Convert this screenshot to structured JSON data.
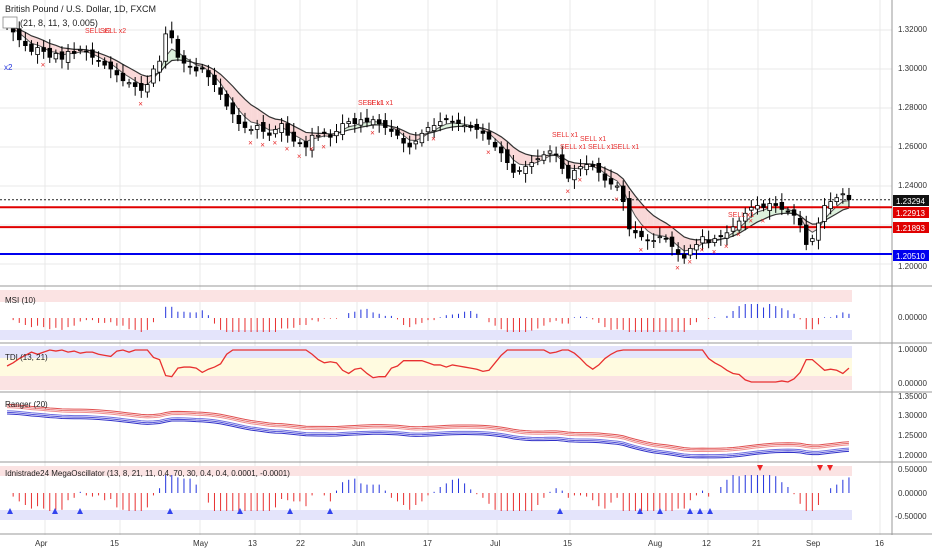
{
  "colors": {
    "bull": "#ffffff",
    "bear": "#000000",
    "support_red": "#e00000",
    "support_blue": "#0000ee",
    "signal": "#e83030",
    "accent_blue": "#2233dd",
    "grid": "#e8e8e8",
    "axis_text": "#333333"
  },
  "header": {
    "title": "British Pound / U.S. Dollar, 1D, FXCM",
    "indicator": "(21, 8, 11, 3, 0.005)"
  },
  "price_axis": {
    "ticks": [
      "1.32000",
      "1.30000",
      "1.28000",
      "1.26000",
      "1.24000",
      "1.20000"
    ],
    "current_price": "1.23294",
    "level_labels": [
      "1.22913",
      "1.21893",
      "1.20510"
    ]
  },
  "time_axis": {
    "labels": [
      "Apr",
      "15",
      "May",
      "13",
      "22",
      "Jun",
      "17",
      "Jul",
      "15",
      "Aug",
      "12",
      "21",
      "Sep",
      "16"
    ]
  },
  "signals": {
    "sell_texts": [
      "SELL x1",
      "SELL x1",
      "SELL x1",
      "SELL x1",
      "SELL x1",
      "SELL x1",
      "SELL x1",
      "SELL x1"
    ],
    "sell_texts_top": [
      "SELL x2",
      "SELL x2",
      "SELL x1"
    ],
    "left_marker": "x2",
    "label_lower_1": "SELL x1 SELL x1"
  },
  "panels": {
    "msi": {
      "title": "MSI (10)",
      "tick": "0.00000"
    },
    "tdi": {
      "title": "TDI (13, 21)",
      "ticks": [
        "1.00000",
        "0.00000"
      ]
    },
    "ranger": {
      "title": "Ranger (20)",
      "ticks": [
        "1.35000",
        "1.30000",
        "1.25000",
        "1.20000"
      ]
    },
    "mega": {
      "title": "Idnistrade24 MegaOscillator (13, 8, 21, 11, 0.4, 70, 30, 0.4, 0.4, 0.0001, -0.0001)",
      "ticks": [
        "0.50000",
        "0.00000",
        "-0.50000"
      ]
    }
  },
  "chart_data": {
    "type": "candlestick",
    "title": "British Pound / U.S. Dollar, 1D, FXCM",
    "ylim": [
      1.19,
      1.33
    ],
    "support_levels": [
      {
        "value": 1.22913,
        "color": "#e00000"
      },
      {
        "value": 1.21893,
        "color": "#e00000"
      },
      {
        "value": 1.2051,
        "color": "#0000ee"
      }
    ],
    "current_price": 1.23294,
    "close_path": [
      1.322,
      1.319,
      1.315,
      1.312,
      1.309,
      1.311,
      1.309,
      1.306,
      1.308,
      1.305,
      1.309,
      1.308,
      1.31,
      1.309,
      1.306,
      1.304,
      1.302,
      1.3,
      1.297,
      1.294,
      1.293,
      1.291,
      1.289,
      1.292,
      1.3,
      1.304,
      1.318,
      1.316,
      1.306,
      1.303,
      1.301,
      1.299,
      1.3,
      1.296,
      1.292,
      1.287,
      1.281,
      1.277,
      1.272,
      1.27,
      1.269,
      1.271,
      1.268,
      1.266,
      1.269,
      1.272,
      1.266,
      1.263,
      1.262,
      1.26,
      1.266,
      1.266,
      1.267,
      1.265,
      1.268,
      1.272,
      1.273,
      1.272,
      1.274,
      1.273,
      1.274,
      1.272,
      1.27,
      1.268,
      1.266,
      1.262,
      1.26,
      1.263,
      1.267,
      1.27,
      1.271,
      1.273,
      1.274,
      1.273,
      1.272,
      1.271,
      1.27,
      1.269,
      1.267,
      1.264,
      1.26,
      1.257,
      1.252,
      1.247,
      1.248,
      1.25,
      1.252,
      1.254,
      1.256,
      1.258,
      1.256,
      1.249,
      1.244,
      1.248,
      1.25,
      1.251,
      1.25,
      1.247,
      1.243,
      1.241,
      1.24,
      1.232,
      1.218,
      1.216,
      1.214,
      1.212,
      1.212,
      1.214,
      1.213,
      1.209,
      1.205,
      1.203,
      1.208,
      1.21,
      1.214,
      1.211,
      1.213,
      1.214,
      1.216,
      1.219,
      1.222,
      1.226,
      1.229,
      1.23,
      1.229,
      1.231,
      1.23,
      1.228,
      1.227,
      1.225,
      1.22,
      1.21,
      1.213,
      1.221,
      1.23,
      1.232,
      1.234,
      1.236,
      1.233
    ]
  }
}
